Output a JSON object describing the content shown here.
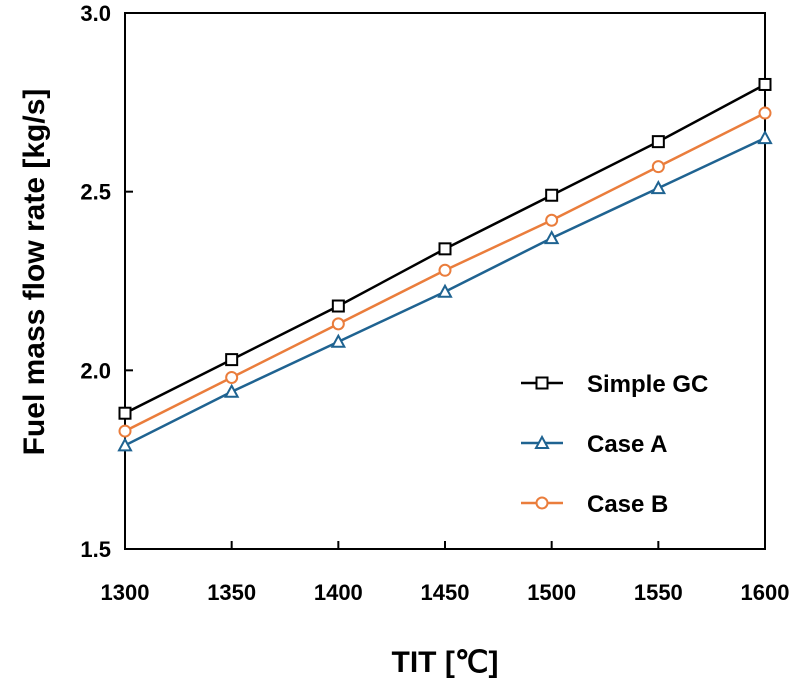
{
  "chart_data": {
    "type": "line",
    "title": "",
    "xlabel": "TIT [℃]",
    "ylabel": "Fuel mass flow rate [kg/s]",
    "xlim": [
      1300,
      1600
    ],
    "ylim": [
      1.5,
      3.0
    ],
    "x_ticks": [
      "1300",
      "1350",
      "1400",
      "1450",
      "1500",
      "1550",
      "1600"
    ],
    "y_ticks": [
      "1.5",
      "2.0",
      "2.5",
      "3.0"
    ],
    "x": [
      1300,
      1350,
      1400,
      1450,
      1500,
      1550,
      1600
    ],
    "grid": false,
    "legend_position": "lower-right",
    "series": [
      {
        "name": "Simple GC",
        "marker": "square",
        "color": "#000000",
        "values": [
          1.88,
          2.03,
          2.18,
          2.34,
          2.49,
          2.64,
          2.8
        ]
      },
      {
        "name": "Case A",
        "marker": "triangle",
        "color": "#1f6391",
        "values": [
          1.79,
          1.94,
          2.08,
          2.22,
          2.37,
          2.51,
          2.65
        ]
      },
      {
        "name": "Case B",
        "marker": "circle",
        "color": "#ea7d3c",
        "values": [
          1.83,
          1.98,
          2.13,
          2.28,
          2.42,
          2.57,
          2.72
        ]
      }
    ]
  }
}
